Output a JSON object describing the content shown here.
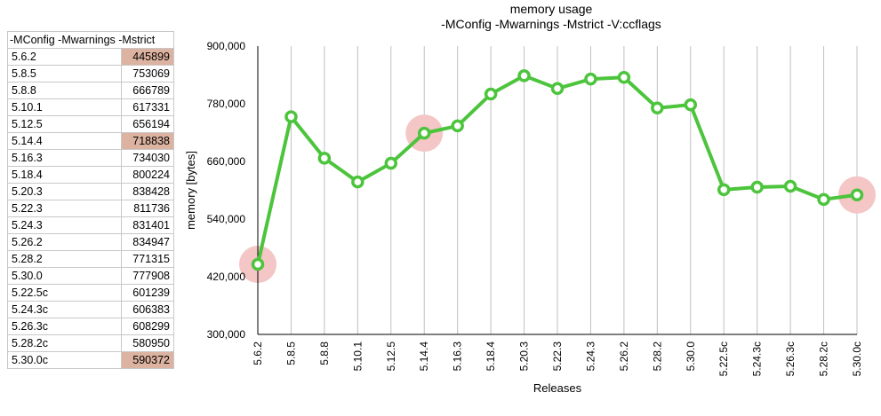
{
  "table": {
    "header": "-MConfig -Mwarnings -Mstrict",
    "rows": [
      {
        "version": "5.6.2",
        "value": "445899",
        "highlight": true
      },
      {
        "version": "5.8.5",
        "value": "753069",
        "highlight": false
      },
      {
        "version": "5.8.8",
        "value": "666789",
        "highlight": false
      },
      {
        "version": "5.10.1",
        "value": "617331",
        "highlight": false
      },
      {
        "version": "5.12.5",
        "value": "656194",
        "highlight": false
      },
      {
        "version": "5.14.4",
        "value": "718838",
        "highlight": true
      },
      {
        "version": "5.16.3",
        "value": "734030",
        "highlight": false
      },
      {
        "version": "5.18.4",
        "value": "800224",
        "highlight": false
      },
      {
        "version": "5.20.3",
        "value": "838428",
        "highlight": false
      },
      {
        "version": "5.22.3",
        "value": "811736",
        "highlight": false
      },
      {
        "version": "5.24.3",
        "value": "831401",
        "highlight": false
      },
      {
        "version": "5.26.2",
        "value": "834947",
        "highlight": false
      },
      {
        "version": "5.28.2",
        "value": "771315",
        "highlight": false
      },
      {
        "version": "5.30.0",
        "value": "777908",
        "highlight": false
      },
      {
        "version": "5.22.5c",
        "value": "601239",
        "highlight": false
      },
      {
        "version": "5.24.3c",
        "value": "606383",
        "highlight": false
      },
      {
        "version": "5.26.3c",
        "value": "608299",
        "highlight": false
      },
      {
        "version": "5.28.2c",
        "value": "580950",
        "highlight": false
      },
      {
        "version": "5.30.0c",
        "value": "590372",
        "highlight": true
      }
    ]
  },
  "chart_data": {
    "type": "line",
    "title": "memory usage",
    "subtitle": "-MConfig -Mwarnings -Mstrict -V:ccflags",
    "xlabel": "Releases",
    "ylabel": "memory [bytes]",
    "ylim": [
      300000,
      900000
    ],
    "yticks": [
      300000,
      420000,
      540000,
      660000,
      780000,
      900000
    ],
    "ytick_labels": [
      "300,000",
      "420,000",
      "540,000",
      "660,000",
      "780,000",
      "900,000"
    ],
    "categories": [
      "5.6.2",
      "5.8.5",
      "5.8.8",
      "5.10.1",
      "5.12.5",
      "5.14.4",
      "5.16.3",
      "5.18.4",
      "5.20.3",
      "5.22.3",
      "5.24.3",
      "5.26.2",
      "5.28.2",
      "5.30.0",
      "5.22.5c",
      "5.24.3c",
      "5.26.3c",
      "5.28.2c",
      "5.30.0c"
    ],
    "series": [
      {
        "values": [
          445899,
          753069,
          666789,
          617331,
          656194,
          718838,
          734030,
          800224,
          838428,
          811736,
          831401,
          834947,
          771315,
          777908,
          601239,
          606383,
          608299,
          580950,
          590372
        ]
      }
    ],
    "highlighted_categories": [
      "5.6.2",
      "5.14.4",
      "5.30.0c"
    ],
    "grid": {
      "vertical": true,
      "horizontal": false
    },
    "colors": {
      "line": "#4cc43c",
      "marker_fill": "#ffffff",
      "highlight": "#f4c6c6",
      "grid": "#c0c0c0",
      "axis": "#000000"
    }
  }
}
